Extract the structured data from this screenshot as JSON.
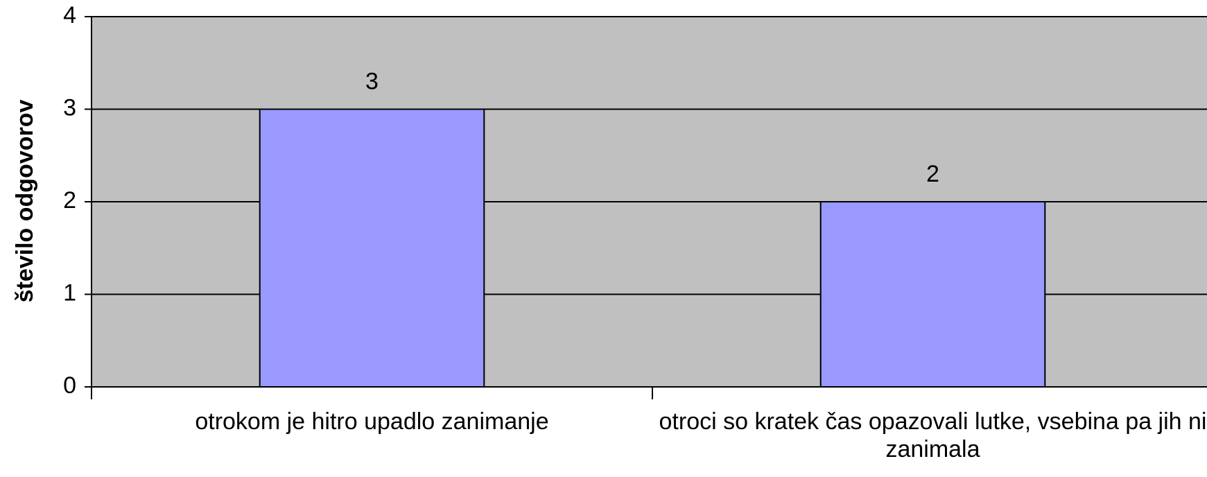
{
  "chart_data": {
    "type": "bar",
    "y_label": "število odgovorov",
    "categories": [
      "otrokom je hitro upadlo zanimanje",
      "otroci so kratek čas opazovali lutke, vsebina pa jih ni zanimala"
    ],
    "values": [
      3,
      2
    ],
    "color": "#9999ff",
    "background": "#c0c0c0",
    "ylim": [
      0,
      4
    ],
    "yticks": [
      0,
      1,
      2,
      3,
      4
    ],
    "grid": true
  }
}
